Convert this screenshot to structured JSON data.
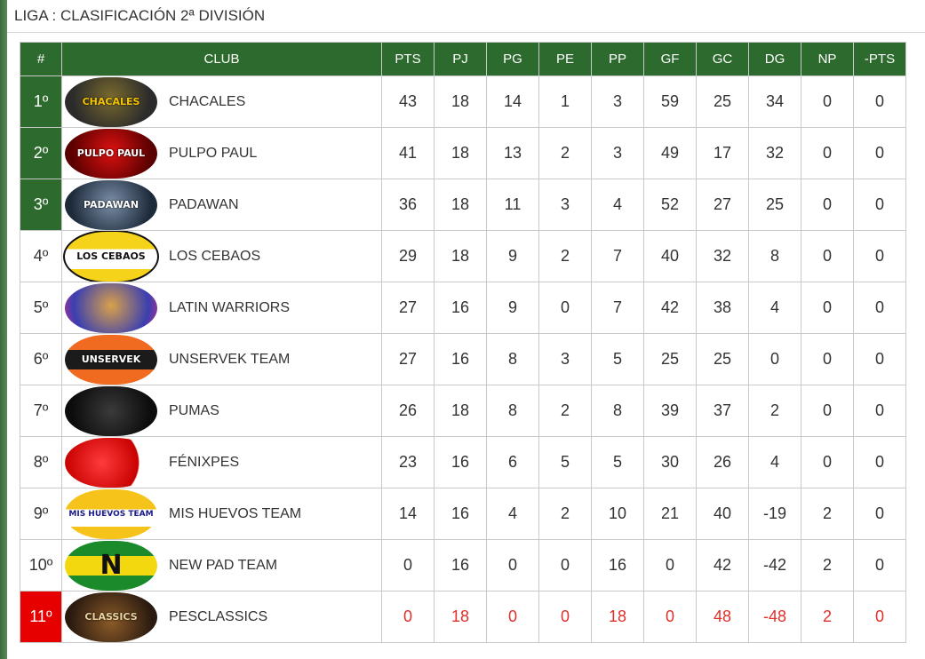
{
  "title": "LIGA : CLASIFICACIÓN 2ª DIVISIÓN",
  "colors": {
    "header_green": "#2d6a2d",
    "promotion_green": "#2d6a2d",
    "relegation_red": "#e60000",
    "relegated_text": "#e0302a"
  },
  "headers": [
    "#",
    "CLUB",
    "PTS",
    "PJ",
    "PG",
    "PE",
    "PP",
    "GF",
    "GC",
    "DG",
    "NP",
    "-PTS"
  ],
  "rows": [
    {
      "pos": "1º",
      "club": "CHACALES",
      "logo": "chacales-logo",
      "logo_text": "CHACALES",
      "pts": "43",
      "pj": "18",
      "pg": "14",
      "pe": "1",
      "pp": "3",
      "gf": "59",
      "gc": "25",
      "dg": "34",
      "np": "0",
      "mpts": "0"
    },
    {
      "pos": "2º",
      "club": "PULPO PAUL",
      "logo": "pulpo-paul-logo",
      "logo_text": "PULPO PAUL",
      "pts": "41",
      "pj": "18",
      "pg": "13",
      "pe": "2",
      "pp": "3",
      "gf": "49",
      "gc": "17",
      "dg": "32",
      "np": "0",
      "mpts": "0"
    },
    {
      "pos": "3º",
      "club": "PADAWAN",
      "logo": "padawan-logo",
      "logo_text": "PADAWAN",
      "pts": "36",
      "pj": "18",
      "pg": "11",
      "pe": "3",
      "pp": "4",
      "gf": "52",
      "gc": "27",
      "dg": "25",
      "np": "0",
      "mpts": "0"
    },
    {
      "pos": "4º",
      "club": "LOS CEBAOS",
      "logo": "los-cebaos-logo",
      "logo_text": "LOS CEBAOS",
      "pts": "29",
      "pj": "18",
      "pg": "9",
      "pe": "2",
      "pp": "7",
      "gf": "40",
      "gc": "32",
      "dg": "8",
      "np": "0",
      "mpts": "0"
    },
    {
      "pos": "5º",
      "club": "LATIN WARRIORS",
      "logo": "latin-warriors-logo",
      "logo_text": "",
      "pts": "27",
      "pj": "16",
      "pg": "9",
      "pe": "0",
      "pp": "7",
      "gf": "42",
      "gc": "38",
      "dg": "4",
      "np": "0",
      "mpts": "0"
    },
    {
      "pos": "6º",
      "club": "UNSERVEK TEAM",
      "logo": "unservek-logo",
      "logo_text": "UNSERVEK",
      "pts": "27",
      "pj": "16",
      "pg": "8",
      "pe": "3",
      "pp": "5",
      "gf": "25",
      "gc": "25",
      "dg": "0",
      "np": "0",
      "mpts": "0"
    },
    {
      "pos": "7º",
      "club": "PUMAS",
      "logo": "pumas-logo",
      "logo_text": "",
      "pts": "26",
      "pj": "18",
      "pg": "8",
      "pe": "2",
      "pp": "8",
      "gf": "39",
      "gc": "37",
      "dg": "2",
      "np": "0",
      "mpts": "0"
    },
    {
      "pos": "8º",
      "club": "FÉNIXPES",
      "logo": "fenixpes-logo",
      "logo_text": "",
      "pts": "23",
      "pj": "16",
      "pg": "6",
      "pe": "5",
      "pp": "5",
      "gf": "30",
      "gc": "26",
      "dg": "4",
      "np": "0",
      "mpts": "0"
    },
    {
      "pos": "9º",
      "club": "MIS HUEVOS TEAM",
      "logo": "mis-huevos-logo",
      "logo_text": "MIS HUEVOS TEAM",
      "pts": "14",
      "pj": "16",
      "pg": "4",
      "pe": "2",
      "pp": "10",
      "gf": "21",
      "gc": "40",
      "dg": "-19",
      "np": "2",
      "mpts": "0"
    },
    {
      "pos": "10º",
      "club": "NEW PAD TEAM",
      "logo": "new-pad-logo",
      "logo_text": "N",
      "pts": "0",
      "pj": "16",
      "pg": "0",
      "pe": "0",
      "pp": "16",
      "gf": "0",
      "gc": "42",
      "dg": "-42",
      "np": "2",
      "mpts": "0"
    },
    {
      "pos": "11º",
      "club": "PESCLASSICS",
      "logo": "pesclassics-logo",
      "logo_text": "CLASSICS",
      "pts": "0",
      "pj": "18",
      "pg": "0",
      "pe": "0",
      "pp": "18",
      "gf": "0",
      "gc": "48",
      "dg": "-48",
      "np": "2",
      "mpts": "0"
    }
  ]
}
